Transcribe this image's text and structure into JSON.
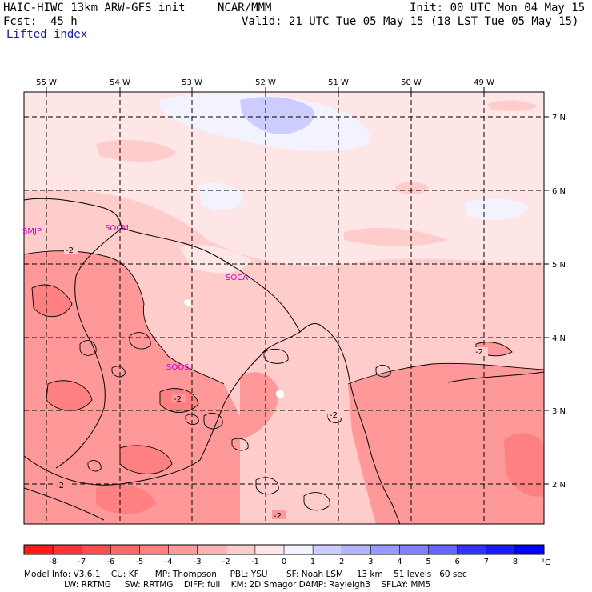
{
  "header": {
    "model": "HAIC-HIWC 13km ARW-GFS init",
    "org": "NCAR/MMM",
    "init": "Init: 00 UTC Mon 04 May 15",
    "fcst": "Fcst:  45 h",
    "valid": "Valid: 21 UTC Tue 05 May 15 (18 LST Tue 05 May 15)",
    "field": "Lifted index"
  },
  "map": {
    "lon_labels": [
      "55 W",
      "54 W",
      "53 W",
      "52 W",
      "51 W",
      "50 W",
      "49 W"
    ],
    "lat_labels": [
      "7 N",
      "6 N",
      "5 N",
      "4 N",
      "3 N",
      "2 N"
    ],
    "stations": [
      "SMJP",
      "SOCM",
      "SOCA",
      "SOOS"
    ],
    "contour_labels": [
      "-2",
      "-2",
      "-2",
      "-2",
      "-2",
      "-2"
    ]
  },
  "colorbar": {
    "ticks": [
      "-8",
      "-7",
      "-6",
      "-5",
      "-4",
      "-3",
      "-2",
      "-1",
      "0",
      "1",
      "2",
      "3",
      "4",
      "5",
      "6",
      "7",
      "8"
    ],
    "unit": "°C",
    "colors": [
      "#ff1a1a",
      "#ff3333",
      "#ff4d4d",
      "#ff6666",
      "#ff8080",
      "#ff9999",
      "#ffb3b3",
      "#ffcccc",
      "#ffe6e6",
      "#f3f3ff",
      "#ccccff",
      "#b3b3ff",
      "#9999ff",
      "#8080ff",
      "#6666ff",
      "#3333ff",
      "#1a1aff",
      "#0000ff"
    ]
  },
  "footer": {
    "line1": "Model Info: V3.6.1    CU: KF      MP: Thompson     PBL: YSU       SF: Noah LSM     13 km    51 levels   60 sec",
    "line2": "               LW: RRTMG     SW: RRTMG    DIFF: full    KM: 2D Smagor DAMP: Rayleigh3    SFLAY: MM5"
  }
}
